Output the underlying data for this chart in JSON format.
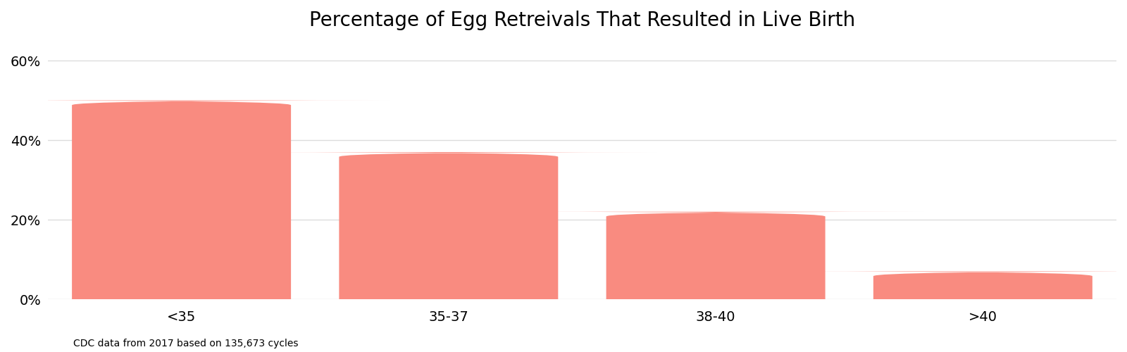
{
  "title": "Percentage of Egg Retreivals That Resulted in Live Birth",
  "categories": [
    "<35",
    "35-37",
    "38-40",
    ">40"
  ],
  "values": [
    50,
    37,
    22,
    7
  ],
  "bar_color": "#F98B80",
  "background_color": "#ffffff",
  "grid_color": "#dddddd",
  "yticks": [
    0,
    20,
    40,
    60
  ],
  "ytick_labels": [
    "0%",
    "20%",
    "40%",
    "60%"
  ],
  "ylim": [
    0,
    65
  ],
  "footnote": "CDC data from 2017 based on 135,673 cycles",
  "title_fontsize": 20,
  "tick_fontsize": 14,
  "footnote_fontsize": 10,
  "bar_width": 0.82,
  "rounding_size": 1.2
}
